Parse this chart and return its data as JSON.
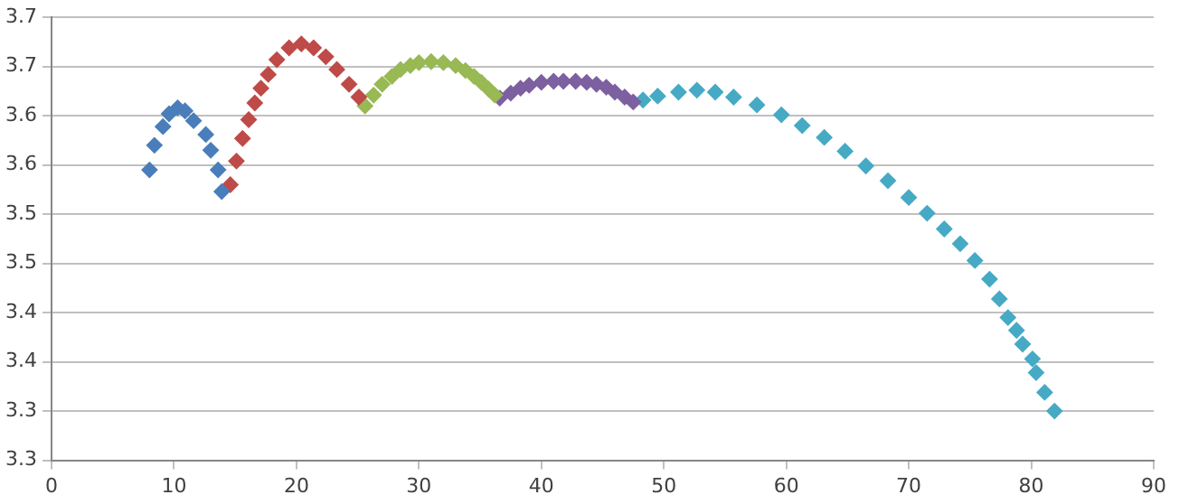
{
  "chart_data": {
    "type": "scatter",
    "marker": "diamond",
    "grid": "y",
    "legend": false,
    "xlim": [
      0,
      90
    ],
    "xticks": [
      0,
      10,
      20,
      30,
      40,
      50,
      60,
      70,
      80,
      90
    ],
    "ylim": [
      3.3,
      3.75
    ],
    "yticks": [
      {
        "value": 3.3,
        "label": "3.3"
      },
      {
        "value": 3.35,
        "label": "3.3"
      },
      {
        "value": 3.4,
        "label": "3.4"
      },
      {
        "value": 3.45,
        "label": "3.4"
      },
      {
        "value": 3.5,
        "label": "3.5"
      },
      {
        "value": 3.55,
        "label": "3.5"
      },
      {
        "value": 3.6,
        "label": "3.6"
      },
      {
        "value": 3.65,
        "label": "3.6"
      },
      {
        "value": 3.7,
        "label": "3.7"
      },
      {
        "value": 3.75,
        "label": "3.7"
      }
    ],
    "series": [
      {
        "color": "#4a7ebb",
        "x": [
          8.0,
          8.4,
          9.1,
          9.6,
          10.3,
          10.9,
          11.6,
          12.6,
          13.0,
          13.6,
          13.9
        ],
        "values": [
          3.595,
          3.62,
          3.639,
          3.652,
          3.658,
          3.655,
          3.645,
          3.631,
          3.615,
          3.595,
          3.573
        ]
      },
      {
        "color": "#be4b48",
        "x": [
          14.6,
          15.1,
          15.6,
          16.1,
          16.6,
          17.1,
          17.7,
          18.4,
          19.4,
          20.4,
          21.4,
          22.4,
          23.3,
          24.3,
          25.1
        ],
        "values": [
          3.58,
          3.604,
          3.627,
          3.646,
          3.663,
          3.678,
          3.692,
          3.707,
          3.719,
          3.723,
          3.719,
          3.71,
          3.697,
          3.682,
          3.669
        ]
      },
      {
        "color": "#98b954",
        "x": [
          25.6,
          26.3,
          27.0,
          27.8,
          28.5,
          29.3,
          30.0,
          31.0,
          32.0,
          33.0,
          33.8,
          34.5,
          35.1,
          35.7,
          36.2
        ],
        "values": [
          3.66,
          3.671,
          3.682,
          3.69,
          3.697,
          3.701,
          3.704,
          3.705,
          3.704,
          3.701,
          3.696,
          3.69,
          3.684,
          3.677,
          3.671
        ]
      },
      {
        "color": "#7d60a0",
        "x": [
          36.6,
          37.5,
          38.3,
          39.0,
          40.0,
          41.0,
          41.8,
          42.8,
          43.7,
          44.5,
          45.3,
          46.0,
          46.8,
          47.5
        ],
        "values": [
          3.668,
          3.673,
          3.678,
          3.681,
          3.684,
          3.685,
          3.685,
          3.685,
          3.684,
          3.682,
          3.679,
          3.674,
          3.669,
          3.664
        ]
      },
      {
        "color": "#46aac5",
        "x": [
          48.3,
          49.5,
          51.2,
          52.7,
          54.2,
          55.7,
          57.6,
          59.6,
          61.3,
          63.1,
          64.8,
          66.5,
          68.3,
          70.0,
          71.5,
          72.9,
          74.2,
          75.4,
          76.6,
          77.4,
          78.1,
          78.8,
          79.3,
          80.1,
          80.4,
          81.1,
          81.9
        ],
        "values": [
          3.666,
          3.67,
          3.674,
          3.676,
          3.674,
          3.669,
          3.661,
          3.651,
          3.64,
          3.628,
          3.614,
          3.599,
          3.584,
          3.567,
          3.551,
          3.535,
          3.52,
          3.503,
          3.484,
          3.464,
          3.445,
          3.432,
          3.418,
          3.403,
          3.389,
          3.369,
          3.35
        ]
      }
    ]
  }
}
